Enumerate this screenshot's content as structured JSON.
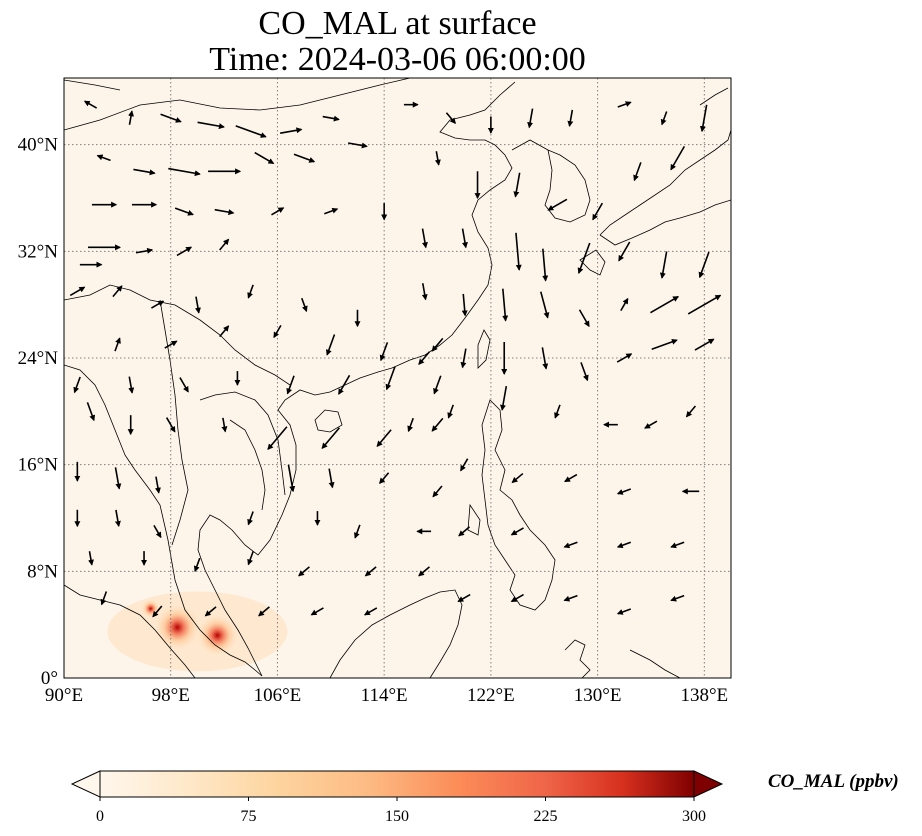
{
  "title": {
    "line1": "CO_MAL at surface",
    "line2": "Time: 2024-03-06 06:00:00"
  },
  "map": {
    "lon_range": [
      90,
      140
    ],
    "lat_range": [
      0,
      45
    ],
    "lon_ticks": [
      {
        "value": 90,
        "label": "90°E"
      },
      {
        "value": 98,
        "label": "98°E"
      },
      {
        "value": 106,
        "label": "106°E"
      },
      {
        "value": 114,
        "label": "114°E"
      },
      {
        "value": 122,
        "label": "122°E"
      },
      {
        "value": 130,
        "label": "130°E"
      },
      {
        "value": 138,
        "label": "138°E"
      }
    ],
    "lat_ticks": [
      {
        "value": 0,
        "label": "0°"
      },
      {
        "value": 8,
        "label": "8°N"
      },
      {
        "value": 16,
        "label": "16°N"
      },
      {
        "value": 24,
        "label": "24°N"
      },
      {
        "value": 32,
        "label": "32°N"
      },
      {
        "value": 40,
        "label": "40°N"
      }
    ],
    "gridlines": true,
    "background_color": "#fdf5ea",
    "coastline_color": "#000000",
    "hotspots": [
      {
        "lon": 98.5,
        "lat": 3.8,
        "value": 300
      },
      {
        "lon": 101.5,
        "lat": 3.2,
        "value": 260
      },
      {
        "lon": 96.5,
        "lat": 5.2,
        "value": 60
      }
    ]
  },
  "wind_arrows": [
    {
      "lon": 92,
      "lat": 43,
      "dir": 300,
      "mag": 0.3
    },
    {
      "lon": 95,
      "lat": 42,
      "dir": 10,
      "mag": 0.3
    },
    {
      "lon": 98,
      "lat": 42,
      "dir": 110,
      "mag": 0.6
    },
    {
      "lon": 101,
      "lat": 41.5,
      "dir": 100,
      "mag": 0.8
    },
    {
      "lon": 104,
      "lat": 41,
      "dir": 110,
      "mag": 1.0
    },
    {
      "lon": 107,
      "lat": 41,
      "dir": 80,
      "mag": 0.6
    },
    {
      "lon": 110,
      "lat": 42,
      "dir": 100,
      "mag": 0.4
    },
    {
      "lon": 93,
      "lat": 39,
      "dir": 290,
      "mag": 0.3
    },
    {
      "lon": 96,
      "lat": 38,
      "dir": 100,
      "mag": 0.6
    },
    {
      "lon": 99,
      "lat": 38,
      "dir": 100,
      "mag": 1.0
    },
    {
      "lon": 102,
      "lat": 38,
      "dir": 90,
      "mag": 1.0
    },
    {
      "lon": 105,
      "lat": 39,
      "dir": 120,
      "mag": 0.6
    },
    {
      "lon": 108,
      "lat": 39,
      "dir": 110,
      "mag": 0.6
    },
    {
      "lon": 112,
      "lat": 40,
      "dir": 100,
      "mag": 0.5
    },
    {
      "lon": 93,
      "lat": 35.5,
      "dir": 90,
      "mag": 0.7
    },
    {
      "lon": 96,
      "lat": 35.5,
      "dir": 90,
      "mag": 0.7
    },
    {
      "lon": 99,
      "lat": 35,
      "dir": 110,
      "mag": 0.5
    },
    {
      "lon": 102,
      "lat": 35,
      "dir": 100,
      "mag": 0.5
    },
    {
      "lon": 106,
      "lat": 35,
      "dir": 60,
      "mag": 0.3
    },
    {
      "lon": 110,
      "lat": 35,
      "dir": 70,
      "mag": 0.3
    },
    {
      "lon": 114,
      "lat": 35,
      "dir": 180,
      "mag": 0.4
    },
    {
      "lon": 93,
      "lat": 32.3,
      "dir": 90,
      "mag": 1.0
    },
    {
      "lon": 96,
      "lat": 32,
      "dir": 80,
      "mag": 0.4
    },
    {
      "lon": 99,
      "lat": 32,
      "dir": 60,
      "mag": 0.4
    },
    {
      "lon": 102,
      "lat": 32.5,
      "dir": 40,
      "mag": 0.3
    },
    {
      "lon": 92,
      "lat": 31,
      "dir": 90,
      "mag": 0.6
    },
    {
      "lon": 91,
      "lat": 29,
      "dir": 60,
      "mag": 0.4
    },
    {
      "lon": 94,
      "lat": 29,
      "dir": 40,
      "mag": 0.3
    },
    {
      "lon": 97,
      "lat": 28,
      "dir": 60,
      "mag": 0.3
    },
    {
      "lon": 100,
      "lat": 28,
      "dir": 170,
      "mag": 0.4
    },
    {
      "lon": 104,
      "lat": 29,
      "dir": 200,
      "mag": 0.3
    },
    {
      "lon": 108,
      "lat": 28,
      "dir": 160,
      "mag": 0.3
    },
    {
      "lon": 112,
      "lat": 27,
      "dir": 180,
      "mag": 0.4
    },
    {
      "lon": 94,
      "lat": 25,
      "dir": 20,
      "mag": 0.3
    },
    {
      "lon": 98,
      "lat": 25,
      "dir": 60,
      "mag": 0.3
    },
    {
      "lon": 102,
      "lat": 26,
      "dir": 40,
      "mag": 0.3
    },
    {
      "lon": 106,
      "lat": 26,
      "dir": 210,
      "mag": 0.3
    },
    {
      "lon": 110,
      "lat": 25,
      "dir": 200,
      "mag": 0.6
    },
    {
      "lon": 114,
      "lat": 24.5,
      "dir": 200,
      "mag": 0.5
    },
    {
      "lon": 118,
      "lat": 25,
      "dir": 220,
      "mag": 0.4
    },
    {
      "lon": 91,
      "lat": 22,
      "dir": 200,
      "mag": 0.4
    },
    {
      "lon": 95,
      "lat": 22,
      "dir": 170,
      "mag": 0.4
    },
    {
      "lon": 99,
      "lat": 22,
      "dir": 150,
      "mag": 0.4
    },
    {
      "lon": 103,
      "lat": 22.5,
      "dir": 180,
      "mag": 0.3
    },
    {
      "lon": 107,
      "lat": 22,
      "dir": 200,
      "mag": 0.5
    },
    {
      "lon": 111,
      "lat": 22,
      "dir": 210,
      "mag": 0.6
    },
    {
      "lon": 114.5,
      "lat": 22.5,
      "dir": 200,
      "mag": 0.7
    },
    {
      "lon": 118,
      "lat": 22,
      "dir": 200,
      "mag": 0.5
    },
    {
      "lon": 92,
      "lat": 20,
      "dir": 160,
      "mag": 0.5
    },
    {
      "lon": 95,
      "lat": 19,
      "dir": 180,
      "mag": 0.5
    },
    {
      "lon": 98,
      "lat": 19,
      "dir": 150,
      "mag": 0.4
    },
    {
      "lon": 102,
      "lat": 19,
      "dir": 170,
      "mag": 0.3
    },
    {
      "lon": 106,
      "lat": 18,
      "dir": 220,
      "mag": 0.9
    },
    {
      "lon": 110,
      "lat": 18,
      "dir": 220,
      "mag": 0.8
    },
    {
      "lon": 114,
      "lat": 18,
      "dir": 220,
      "mag": 0.6
    },
    {
      "lon": 118,
      "lat": 19,
      "dir": 220,
      "mag": 0.4
    },
    {
      "lon": 91,
      "lat": 15.5,
      "dir": 180,
      "mag": 0.5
    },
    {
      "lon": 94,
      "lat": 15,
      "dir": 170,
      "mag": 0.6
    },
    {
      "lon": 97,
      "lat": 14.5,
      "dir": 170,
      "mag": 0.4
    },
    {
      "lon": 107,
      "lat": 15,
      "dir": 170,
      "mag": 0.8
    },
    {
      "lon": 110,
      "lat": 15,
      "dir": 170,
      "mag": 0.5
    },
    {
      "lon": 114,
      "lat": 15,
      "dir": 220,
      "mag": 0.3
    },
    {
      "lon": 118,
      "lat": 14,
      "dir": 220,
      "mag": 0.3
    },
    {
      "lon": 91,
      "lat": 12,
      "dir": 180,
      "mag": 0.4
    },
    {
      "lon": 94,
      "lat": 12,
      "dir": 170,
      "mag": 0.4
    },
    {
      "lon": 97,
      "lat": 11,
      "dir": 150,
      "mag": 0.3
    },
    {
      "lon": 104,
      "lat": 12,
      "dir": 200,
      "mag": 0.3
    },
    {
      "lon": 109,
      "lat": 12,
      "dir": 180,
      "mag": 0.3
    },
    {
      "lon": 112,
      "lat": 11,
      "dir": 200,
      "mag": 0.3
    },
    {
      "lon": 117,
      "lat": 11,
      "dir": 270,
      "mag": 0.3
    },
    {
      "lon": 92,
      "lat": 9,
      "dir": 170,
      "mag": 0.3
    },
    {
      "lon": 96,
      "lat": 9,
      "dir": 180,
      "mag": 0.3
    },
    {
      "lon": 100,
      "lat": 8.5,
      "dir": 200,
      "mag": 0.3
    },
    {
      "lon": 104,
      "lat": 9,
      "dir": 200,
      "mag": 0.3
    },
    {
      "lon": 108,
      "lat": 8,
      "dir": 230,
      "mag": 0.3
    },
    {
      "lon": 113,
      "lat": 8,
      "dir": 230,
      "mag": 0.3
    },
    {
      "lon": 117,
      "lat": 8,
      "dir": 230,
      "mag": 0.3
    },
    {
      "lon": 93,
      "lat": 6,
      "dir": 200,
      "mag": 0.3
    },
    {
      "lon": 97,
      "lat": 5,
      "dir": 220,
      "mag": 0.3
    },
    {
      "lon": 101,
      "lat": 5,
      "dir": 230,
      "mag": 0.3
    },
    {
      "lon": 105,
      "lat": 5,
      "dir": 230,
      "mag": 0.3
    },
    {
      "lon": 109,
      "lat": 5,
      "dir": 240,
      "mag": 0.3
    },
    {
      "lon": 113,
      "lat": 5,
      "dir": 240,
      "mag": 0.3
    },
    {
      "lon": 116,
      "lat": 43,
      "dir": 90,
      "mag": 0.3
    },
    {
      "lon": 119,
      "lat": 42,
      "dir": 140,
      "mag": 0.3
    },
    {
      "lon": 122,
      "lat": 41.5,
      "dir": 180,
      "mag": 0.4
    },
    {
      "lon": 125,
      "lat": 42,
      "dir": 190,
      "mag": 0.5
    },
    {
      "lon": 128,
      "lat": 42,
      "dir": 190,
      "mag": 0.4
    },
    {
      "lon": 132,
      "lat": 43,
      "dir": 70,
      "mag": 0.3
    },
    {
      "lon": 135,
      "lat": 42,
      "dir": 200,
      "mag": 0.3
    },
    {
      "lon": 138,
      "lat": 42,
      "dir": 190,
      "mag": 0.8
    },
    {
      "lon": 118,
      "lat": 39,
      "dir": 170,
      "mag": 0.3
    },
    {
      "lon": 121,
      "lat": 37,
      "dir": 180,
      "mag": 0.8
    },
    {
      "lon": 124,
      "lat": 37,
      "dir": 190,
      "mag": 0.7
    },
    {
      "lon": 127,
      "lat": 35.5,
      "dir": 240,
      "mag": 0.6
    },
    {
      "lon": 130,
      "lat": 35,
      "dir": 210,
      "mag": 0.5
    },
    {
      "lon": 133,
      "lat": 38,
      "dir": 200,
      "mag": 0.5
    },
    {
      "lon": 136,
      "lat": 39,
      "dir": 210,
      "mag": 0.8
    },
    {
      "lon": 117,
      "lat": 33,
      "dir": 170,
      "mag": 0.5
    },
    {
      "lon": 120,
      "lat": 33,
      "dir": 170,
      "mag": 0.5
    },
    {
      "lon": 124,
      "lat": 32,
      "dir": 175,
      "mag": 1.2
    },
    {
      "lon": 126,
      "lat": 31,
      "dir": 175,
      "mag": 1.0
    },
    {
      "lon": 129,
      "lat": 31.5,
      "dir": 200,
      "mag": 1.0
    },
    {
      "lon": 132,
      "lat": 32,
      "dir": 210,
      "mag": 0.6
    },
    {
      "lon": 135,
      "lat": 31,
      "dir": 190,
      "mag": 0.8
    },
    {
      "lon": 138,
      "lat": 31,
      "dir": 200,
      "mag": 0.8
    },
    {
      "lon": 117,
      "lat": 29,
      "dir": 170,
      "mag": 0.4
    },
    {
      "lon": 120,
      "lat": 28,
      "dir": 175,
      "mag": 0.6
    },
    {
      "lon": 123,
      "lat": 28,
      "dir": 175,
      "mag": 1.0
    },
    {
      "lon": 126,
      "lat": 28,
      "dir": 165,
      "mag": 0.8
    },
    {
      "lon": 129,
      "lat": 27,
      "dir": 150,
      "mag": 0.5
    },
    {
      "lon": 132,
      "lat": 28,
      "dir": 30,
      "mag": 0.3
    },
    {
      "lon": 135,
      "lat": 28,
      "dir": 60,
      "mag": 1.0
    },
    {
      "lon": 138,
      "lat": 28,
      "dir": 60,
      "mag": 1.2
    },
    {
      "lon": 117,
      "lat": 24,
      "dir": 220,
      "mag": 0.4
    },
    {
      "lon": 120,
      "lat": 24,
      "dir": 190,
      "mag": 0.5
    },
    {
      "lon": 123,
      "lat": 24,
      "dir": 180,
      "mag": 1.0
    },
    {
      "lon": 126,
      "lat": 24,
      "dir": 170,
      "mag": 0.6
    },
    {
      "lon": 129,
      "lat": 23,
      "dir": 160,
      "mag": 0.5
    },
    {
      "lon": 132,
      "lat": 24,
      "dir": 60,
      "mag": 0.4
    },
    {
      "lon": 135,
      "lat": 25,
      "dir": 70,
      "mag": 0.8
    },
    {
      "lon": 138,
      "lat": 25,
      "dir": 60,
      "mag": 0.6
    },
    {
      "lon": 116,
      "lat": 19,
      "dir": 200,
      "mag": 0.3
    },
    {
      "lon": 119,
      "lat": 20,
      "dir": 200,
      "mag": 0.3
    },
    {
      "lon": 123,
      "lat": 21,
      "dir": 190,
      "mag": 0.7
    },
    {
      "lon": 127,
      "lat": 20,
      "dir": 200,
      "mag": 0.3
    },
    {
      "lon": 131,
      "lat": 19,
      "dir": 270,
      "mag": 0.3
    },
    {
      "lon": 134,
      "lat": 19,
      "dir": 240,
      "mag": 0.3
    },
    {
      "lon": 137,
      "lat": 20,
      "dir": 220,
      "mag": 0.3
    },
    {
      "lon": 120,
      "lat": 16,
      "dir": 210,
      "mag": 0.3
    },
    {
      "lon": 124,
      "lat": 15,
      "dir": 230,
      "mag": 0.3
    },
    {
      "lon": 128,
      "lat": 15,
      "dir": 240,
      "mag": 0.3
    },
    {
      "lon": 132,
      "lat": 14,
      "dir": 250,
      "mag": 0.3
    },
    {
      "lon": 137,
      "lat": 14,
      "dir": 270,
      "mag": 0.4
    },
    {
      "lon": 120,
      "lat": 11,
      "dir": 230,
      "mag": 0.3
    },
    {
      "lon": 124,
      "lat": 11,
      "dir": 240,
      "mag": 0.3
    },
    {
      "lon": 128,
      "lat": 10,
      "dir": 250,
      "mag": 0.3
    },
    {
      "lon": 132,
      "lat": 10,
      "dir": 250,
      "mag": 0.3
    },
    {
      "lon": 136,
      "lat": 10,
      "dir": 250,
      "mag": 0.3
    },
    {
      "lon": 120,
      "lat": 6,
      "dir": 240,
      "mag": 0.3
    },
    {
      "lon": 124,
      "lat": 6,
      "dir": 240,
      "mag": 0.3
    },
    {
      "lon": 128,
      "lat": 6,
      "dir": 250,
      "mag": 0.3
    },
    {
      "lon": 132,
      "lat": 5,
      "dir": 250,
      "mag": 0.3
    },
    {
      "lon": 136,
      "lat": 6,
      "dir": 250,
      "mag": 0.3
    }
  ],
  "colorbar": {
    "label": "CO_MAL (ppbv)",
    "min": 0,
    "max": 300,
    "extend": "both",
    "colormap": "OrRd",
    "ticks": [
      {
        "value": 0,
        "label": "0"
      },
      {
        "value": 75,
        "label": "75"
      },
      {
        "value": 150,
        "label": "150"
      },
      {
        "value": 225,
        "label": "225"
      },
      {
        "value": 300,
        "label": "300"
      }
    ]
  }
}
